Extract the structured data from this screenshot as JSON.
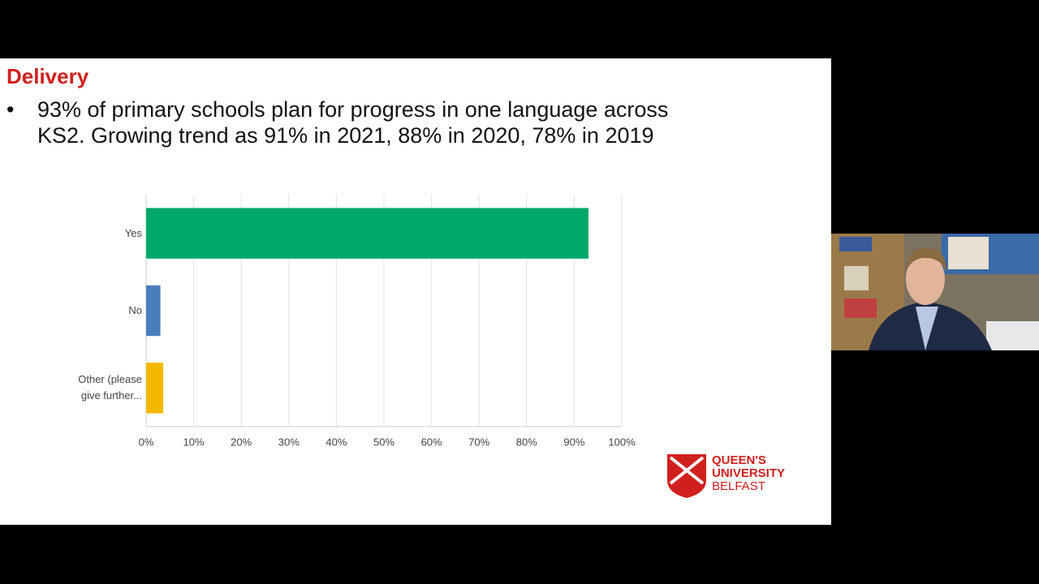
{
  "slide": {
    "title": "Delivery",
    "bullet_lines": [
      "93% of primary schools plan for progress in one language across",
      "KS2. Growing trend as 91% in 2021, 88% in 2020, 78% in 2019"
    ]
  },
  "chart_data": {
    "type": "hbar",
    "categories": [
      "Yes",
      "No",
      "Other (please give further..."
    ],
    "series": [
      {
        "values": [
          93,
          3,
          3.6
        ]
      }
    ],
    "colors": [
      "#00a86b",
      "#4a7ebb",
      "#f5b800"
    ],
    "xlim": [
      0,
      100
    ],
    "xticks": [
      {
        "value": 0,
        "label": "0%"
      },
      {
        "value": 10,
        "label": "10%"
      },
      {
        "value": 20,
        "label": "20%"
      },
      {
        "value": 30,
        "label": "30%"
      },
      {
        "value": 40,
        "label": "40%"
      },
      {
        "value": 50,
        "label": "50%"
      },
      {
        "value": 60,
        "label": "60%"
      },
      {
        "value": 70,
        "label": "70%"
      },
      {
        "value": 80,
        "label": "80%"
      },
      {
        "value": 90,
        "label": "90%"
      },
      {
        "value": 100,
        "label": "100%"
      }
    ],
    "grid": true
  },
  "logo": {
    "lines": [
      "QUEEN'S",
      "UNIVERSITY",
      "BELFAST"
    ]
  }
}
